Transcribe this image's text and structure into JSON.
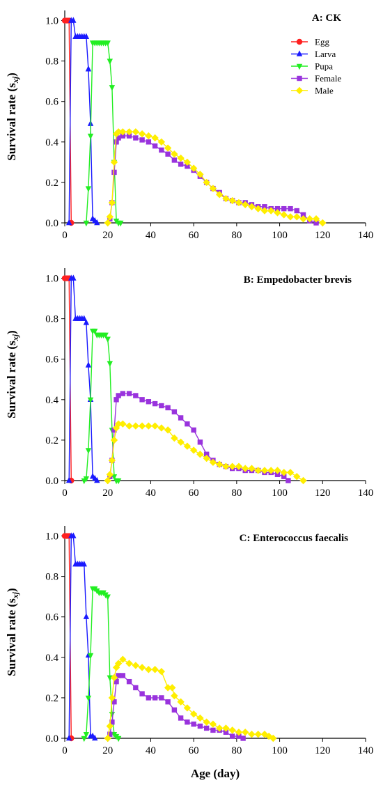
{
  "chart_data": [
    {
      "type": "line",
      "title": "A: CK",
      "xlabel": "",
      "ylabel": "Survival rate (s",
      "ylabel_sub": "xj",
      "ylabel_close": ")",
      "xlim": [
        0,
        140
      ],
      "ylim": [
        0,
        1.05
      ],
      "xticks": [
        0,
        20,
        40,
        60,
        80,
        100,
        120,
        140
      ],
      "yticks": [
        0.0,
        0.2,
        0.4,
        0.6,
        0.8,
        1.0
      ],
      "ytick_labels": [
        "0.0",
        "0.2",
        "0.4",
        "0.6",
        "0.8",
        "1.0"
      ],
      "legend_position": "top-right",
      "series": [
        {
          "name": "Egg",
          "color": "#ff2020",
          "marker": "circle",
          "x": [
            0,
            1,
            2,
            3
          ],
          "y": [
            1,
            1,
            1,
            0
          ]
        },
        {
          "name": "Larva",
          "color": "#1a1aff",
          "marker": "triangle-up",
          "x": [
            2,
            3,
            4,
            5,
            6,
            7,
            8,
            9,
            10,
            11,
            12,
            13,
            14,
            15
          ],
          "y": [
            0,
            1,
            1,
            0.92,
            0.92,
            0.92,
            0.92,
            0.92,
            0.92,
            0.76,
            0.49,
            0.02,
            0.01,
            0
          ]
        },
        {
          "name": "Pupa",
          "color": "#22ee22",
          "marker": "triangle-down",
          "x": [
            10,
            11,
            12,
            13,
            14,
            15,
            16,
            17,
            18,
            19,
            20,
            21,
            22,
            23,
            24,
            25,
            26
          ],
          "y": [
            0,
            0.17,
            0.43,
            0.89,
            0.89,
            0.89,
            0.89,
            0.89,
            0.89,
            0.89,
            0.89,
            0.8,
            0.67,
            0.3,
            0.01,
            0,
            0
          ]
        },
        {
          "name": "Female",
          "color": "#9933dd",
          "marker": "square",
          "x": [
            21,
            22,
            23,
            24,
            25,
            27,
            30,
            33,
            36,
            39,
            42,
            45,
            48,
            51,
            54,
            57,
            60,
            63,
            66,
            69,
            72,
            75,
            78,
            81,
            84,
            87,
            90,
            93,
            96,
            99,
            102,
            105,
            108,
            111,
            114,
            117
          ],
          "y": [
            0.02,
            0.1,
            0.25,
            0.4,
            0.42,
            0.43,
            0.43,
            0.42,
            0.41,
            0.4,
            0.38,
            0.36,
            0.34,
            0.31,
            0.29,
            0.28,
            0.26,
            0.23,
            0.2,
            0.17,
            0.15,
            0.12,
            0.11,
            0.1,
            0.1,
            0.09,
            0.08,
            0.08,
            0.07,
            0.07,
            0.07,
            0.07,
            0.06,
            0.04,
            0.01,
            0
          ]
        },
        {
          "name": "Male",
          "color": "#ffee00",
          "marker": "diamond",
          "x": [
            20,
            21,
            22,
            23,
            24,
            25,
            27,
            30,
            33,
            36,
            39,
            42,
            45,
            48,
            51,
            54,
            57,
            60,
            63,
            66,
            69,
            72,
            75,
            78,
            81,
            84,
            87,
            90,
            93,
            96,
            99,
            102,
            105,
            108,
            111,
            114,
            117,
            120
          ],
          "y": [
            0,
            0.03,
            0.1,
            0.3,
            0.44,
            0.45,
            0.45,
            0.45,
            0.45,
            0.44,
            0.43,
            0.42,
            0.4,
            0.37,
            0.34,
            0.32,
            0.3,
            0.27,
            0.24,
            0.2,
            0.17,
            0.14,
            0.12,
            0.11,
            0.1,
            0.09,
            0.08,
            0.07,
            0.06,
            0.06,
            0.05,
            0.04,
            0.03,
            0.03,
            0.02,
            0.02,
            0.02,
            0
          ]
        }
      ]
    },
    {
      "type": "line",
      "title": "B: Empedobacter brevis",
      "xlabel": "",
      "ylabel": "Survival rate (s",
      "ylabel_sub": "xj",
      "ylabel_close": ")",
      "xlim": [
        0,
        140
      ],
      "ylim": [
        0,
        1.05
      ],
      "xticks": [
        0,
        20,
        40,
        60,
        80,
        100,
        120,
        140
      ],
      "yticks": [
        0.0,
        0.2,
        0.4,
        0.6,
        0.8,
        1.0
      ],
      "ytick_labels": [
        "0.0",
        "0.2",
        "0.4",
        "0.6",
        "0.8",
        "1.0"
      ],
      "series": [
        {
          "name": "Egg",
          "color": "#ff2020",
          "marker": "circle",
          "x": [
            0,
            1,
            2,
            3
          ],
          "y": [
            1,
            1,
            1,
            0
          ]
        },
        {
          "name": "Larva",
          "color": "#1a1aff",
          "marker": "triangle-up",
          "x": [
            2,
            3,
            4,
            5,
            6,
            7,
            8,
            9,
            10,
            11,
            12,
            13,
            14,
            15
          ],
          "y": [
            0,
            1,
            1,
            0.8,
            0.8,
            0.8,
            0.8,
            0.8,
            0.78,
            0.57,
            0.4,
            0.02,
            0.01,
            0
          ]
        },
        {
          "name": "Pupa",
          "color": "#22ee22",
          "marker": "triangle-down",
          "x": [
            9,
            10,
            11,
            12,
            13,
            14,
            15,
            16,
            17,
            18,
            19,
            20,
            21,
            22,
            23,
            24,
            25
          ],
          "y": [
            0,
            0.01,
            0.15,
            0.4,
            0.74,
            0.74,
            0.72,
            0.72,
            0.72,
            0.72,
            0.72,
            0.7,
            0.58,
            0.25,
            0.02,
            0,
            0
          ]
        },
        {
          "name": "Female",
          "color": "#9933dd",
          "marker": "square",
          "x": [
            21,
            22,
            23,
            24,
            25,
            27,
            30,
            33,
            36,
            39,
            42,
            45,
            48,
            51,
            54,
            57,
            60,
            63,
            66,
            69,
            72,
            75,
            78,
            81,
            84,
            87,
            90,
            93,
            96,
            99,
            102,
            104
          ],
          "y": [
            0.02,
            0.1,
            0.25,
            0.4,
            0.42,
            0.43,
            0.43,
            0.42,
            0.4,
            0.39,
            0.38,
            0.37,
            0.36,
            0.34,
            0.31,
            0.28,
            0.25,
            0.19,
            0.13,
            0.1,
            0.08,
            0.07,
            0.06,
            0.06,
            0.05,
            0.05,
            0.05,
            0.04,
            0.04,
            0.03,
            0.02,
            0
          ]
        },
        {
          "name": "Male",
          "color": "#ffee00",
          "marker": "diamond",
          "x": [
            20,
            21,
            22,
            23,
            24,
            25,
            27,
            30,
            33,
            36,
            39,
            42,
            45,
            48,
            51,
            54,
            57,
            60,
            63,
            66,
            69,
            72,
            75,
            78,
            81,
            84,
            87,
            90,
            93,
            96,
            99,
            102,
            105,
            108,
            111
          ],
          "y": [
            0,
            0.03,
            0.1,
            0.2,
            0.26,
            0.28,
            0.28,
            0.27,
            0.27,
            0.27,
            0.27,
            0.27,
            0.26,
            0.25,
            0.21,
            0.19,
            0.17,
            0.15,
            0.13,
            0.11,
            0.09,
            0.08,
            0.07,
            0.07,
            0.07,
            0.06,
            0.06,
            0.05,
            0.05,
            0.05,
            0.05,
            0.04,
            0.04,
            0.02,
            0
          ]
        }
      ]
    },
    {
      "type": "line",
      "title": "C: Enterococcus faecalis",
      "xlabel": "Age (day)",
      "ylabel": "Survival rate (s",
      "ylabel_sub": "xj",
      "ylabel_close": ")",
      "xlim": [
        0,
        140
      ],
      "ylim": [
        0,
        1.05
      ],
      "xticks": [
        0,
        20,
        40,
        60,
        80,
        100,
        120,
        140
      ],
      "yticks": [
        0.0,
        0.2,
        0.4,
        0.6,
        0.8,
        1.0
      ],
      "ytick_labels": [
        "0.0",
        "0.2",
        "0.4",
        "0.6",
        "0.8",
        "1.0"
      ],
      "series": [
        {
          "name": "Egg",
          "color": "#ff2020",
          "marker": "circle",
          "x": [
            0,
            1,
            2,
            3
          ],
          "y": [
            1,
            1,
            1,
            0
          ]
        },
        {
          "name": "Larva",
          "color": "#1a1aff",
          "marker": "triangle-up",
          "x": [
            2,
            3,
            4,
            5,
            6,
            7,
            8,
            9,
            10,
            11,
            12,
            13,
            14
          ],
          "y": [
            0,
            1,
            1,
            0.86,
            0.86,
            0.86,
            0.86,
            0.86,
            0.6,
            0.41,
            0.01,
            0.01,
            0
          ]
        },
        {
          "name": "Pupa",
          "color": "#22ee22",
          "marker": "triangle-down",
          "x": [
            9,
            10,
            11,
            12,
            13,
            14,
            15,
            16,
            17,
            18,
            19,
            20,
            21,
            22,
            23,
            24,
            25
          ],
          "y": [
            0,
            0.02,
            0.2,
            0.41,
            0.74,
            0.74,
            0.73,
            0.72,
            0.72,
            0.72,
            0.71,
            0.7,
            0.3,
            0.12,
            0.02,
            0.01,
            0
          ]
        },
        {
          "name": "Female",
          "color": "#9933dd",
          "marker": "square",
          "x": [
            21,
            22,
            23,
            24,
            25,
            27,
            30,
            33,
            36,
            39,
            42,
            45,
            48,
            51,
            54,
            57,
            60,
            63,
            66,
            69,
            72,
            75,
            78,
            81,
            83
          ],
          "y": [
            0.02,
            0.08,
            0.18,
            0.28,
            0.31,
            0.31,
            0.28,
            0.25,
            0.22,
            0.2,
            0.2,
            0.2,
            0.18,
            0.14,
            0.1,
            0.08,
            0.07,
            0.06,
            0.05,
            0.04,
            0.04,
            0.03,
            0.01,
            0.01,
            0
          ]
        },
        {
          "name": "Male",
          "color": "#ffee00",
          "marker": "diamond",
          "x": [
            20,
            21,
            22,
            23,
            24,
            25,
            27,
            30,
            33,
            36,
            39,
            42,
            45,
            48,
            50,
            51,
            54,
            57,
            60,
            63,
            66,
            69,
            72,
            75,
            78,
            81,
            84,
            87,
            90,
            93,
            95,
            97
          ],
          "y": [
            0,
            0.06,
            0.2,
            0.3,
            0.35,
            0.37,
            0.39,
            0.37,
            0.36,
            0.35,
            0.34,
            0.34,
            0.33,
            0.25,
            0.25,
            0.21,
            0.18,
            0.15,
            0.12,
            0.1,
            0.08,
            0.07,
            0.05,
            0.05,
            0.04,
            0.03,
            0.03,
            0.02,
            0.02,
            0.02,
            0.01,
            0
          ]
        }
      ]
    }
  ]
}
